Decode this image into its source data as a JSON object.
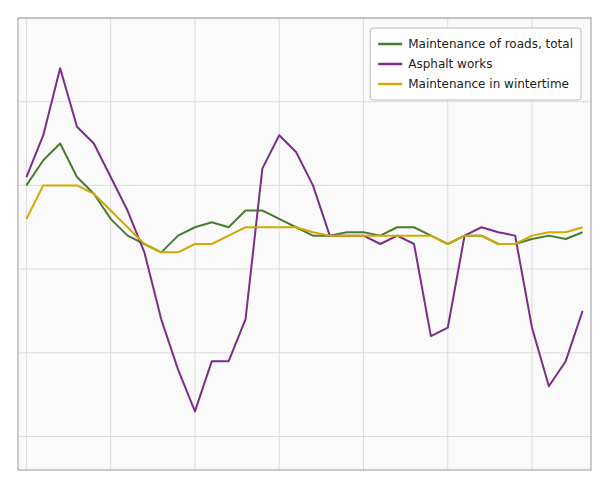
{
  "chart_data": {
    "type": "line",
    "x": [
      0,
      1,
      2,
      3,
      4,
      5,
      6,
      7,
      8,
      9,
      10,
      11,
      12,
      13,
      14,
      15,
      16,
      17,
      18,
      19,
      20,
      21,
      22,
      23,
      24,
      25,
      26,
      27,
      28,
      29,
      30,
      31,
      32,
      33
    ],
    "series": [
      {
        "name": "Maintenance of roads, total",
        "color": "#4a7c2f",
        "values": [
          5.0,
          6.5,
          7.5,
          5.5,
          4.5,
          3.0,
          2.0,
          1.5,
          1.0,
          2.0,
          2.5,
          2.8,
          2.5,
          3.5,
          3.5,
          3.0,
          2.5,
          2.0,
          2.0,
          2.2,
          2.2,
          2.0,
          2.5,
          2.5,
          2.0,
          1.5,
          2.0,
          2.0,
          1.5,
          1.5,
          1.8,
          2.0,
          1.8,
          2.2
        ]
      },
      {
        "name": "Asphalt works",
        "color": "#7b2d8b",
        "values": [
          5.5,
          8.0,
          12.0,
          8.5,
          7.5,
          5.5,
          3.5,
          1.0,
          -3.0,
          -6.0,
          -8.5,
          -5.5,
          -5.5,
          -3.0,
          6.0,
          8.0,
          7.0,
          5.0,
          2.0,
          2.0,
          2.0,
          1.5,
          2.0,
          1.5,
          -4.0,
          -3.5,
          2.0,
          2.5,
          2.2,
          2.0,
          -3.5,
          -7.0,
          -5.5,
          -2.5
        ]
      },
      {
        "name": "Maintenance in wintertime",
        "color": "#d4a800",
        "values": [
          3.0,
          5.0,
          5.0,
          5.0,
          4.5,
          3.5,
          2.5,
          1.5,
          1.0,
          1.0,
          1.5,
          1.5,
          2.0,
          2.5,
          2.5,
          2.5,
          2.5,
          2.2,
          2.0,
          2.0,
          2.0,
          2.0,
          2.0,
          2.0,
          2.0,
          1.5,
          2.0,
          2.0,
          1.5,
          1.5,
          2.0,
          2.2,
          2.2,
          2.5
        ]
      }
    ],
    "xlim": [
      -0.5,
      33.5
    ],
    "xticks": [
      0,
      5,
      10,
      15,
      20,
      25,
      30
    ],
    "ylim": [
      -12,
      15
    ],
    "yticks": [
      -10,
      -5,
      0,
      5,
      10,
      15
    ],
    "grid": true,
    "legend": "upper right",
    "tick_labels": false
  }
}
